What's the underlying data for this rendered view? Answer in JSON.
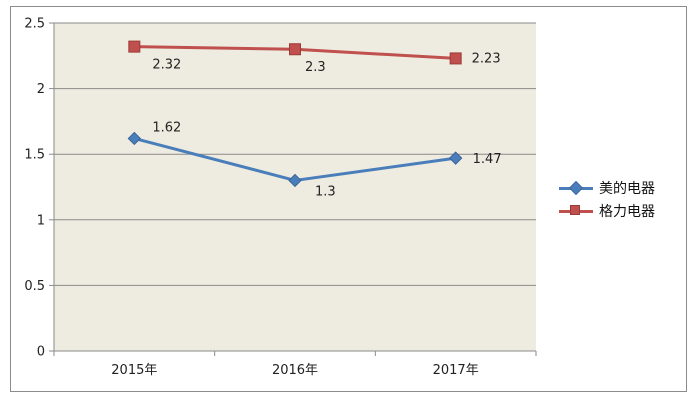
{
  "chart_data": {
    "type": "line",
    "categories": [
      "2015年",
      "2016年",
      "2017年"
    ],
    "series": [
      {
        "name": "美的电器",
        "values": [
          1.62,
          1.3,
          1.47
        ],
        "labels": [
          "1.62",
          "1.3",
          "1.47"
        ],
        "color": "#4a7ebb",
        "marker": "diamond"
      },
      {
        "name": "格力电器",
        "values": [
          2.32,
          2.3,
          2.23
        ],
        "labels": [
          "2.32",
          "2.3",
          "2.23"
        ],
        "color": "#c0504d",
        "marker": "square"
      }
    ],
    "y_ticks": [
      "0",
      "0.5",
      "1",
      "1.5",
      "2",
      "2.5"
    ],
    "ylim": [
      0,
      2.5
    ],
    "title": "",
    "xlabel": "",
    "ylabel": "",
    "grid": true,
    "legend": "right",
    "plot_background": "#eeece1",
    "gridline_color": "#8a8a8a"
  }
}
